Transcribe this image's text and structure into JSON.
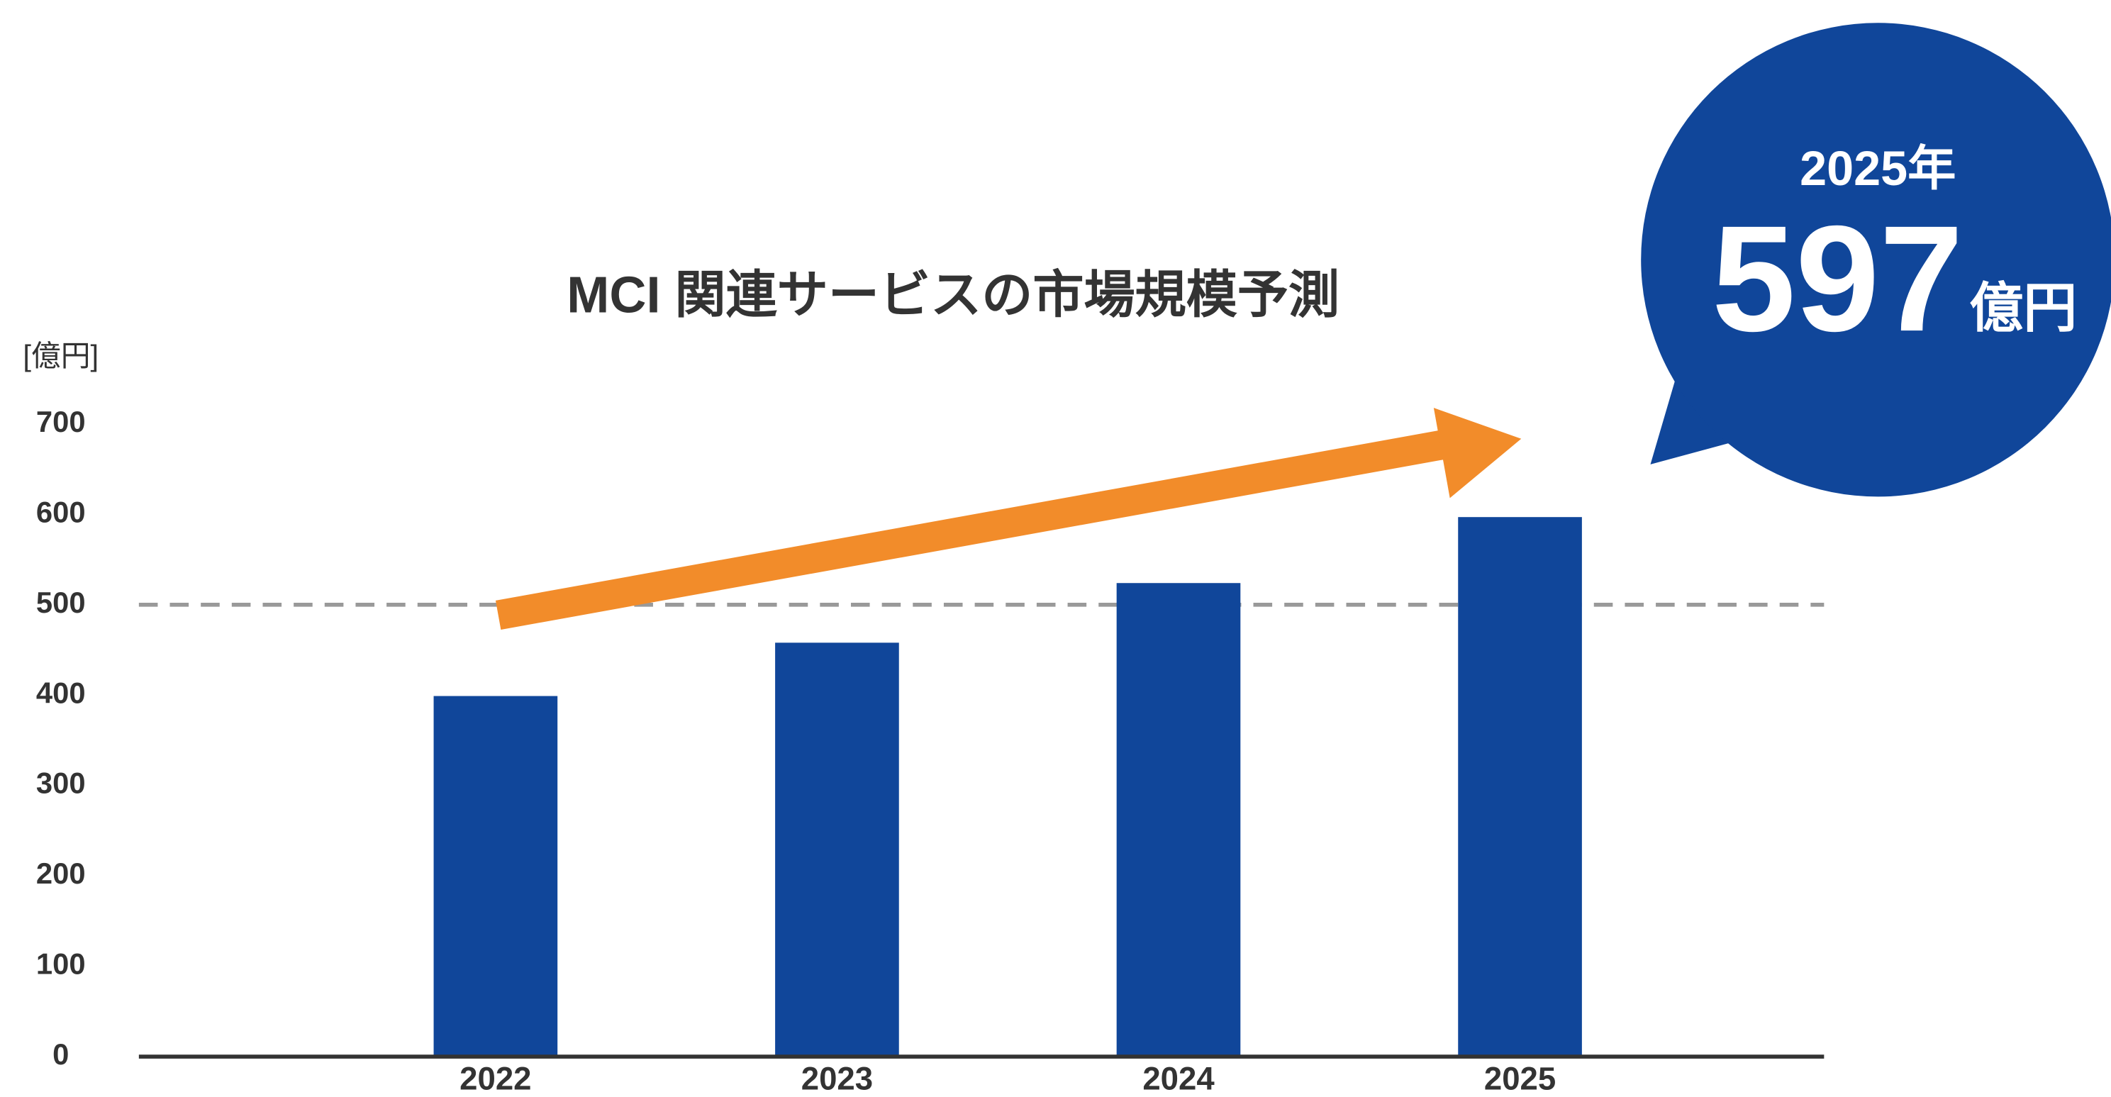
{
  "chart_data": {
    "type": "bar",
    "title": "MCI 関連サービスの市場規模予測",
    "y_axis_label": "[億円]",
    "categories": [
      "2022",
      "2023",
      "2024",
      "2025"
    ],
    "values": [
      399,
      458,
      524,
      597
    ],
    "color": "#10469a",
    "ylim": [
      0,
      700
    ],
    "yticks": [
      0,
      100,
      200,
      300,
      400,
      500,
      600,
      700
    ],
    "grid": false,
    "reference_line": 500,
    "callout": {
      "year_label": "2025年",
      "value": 597,
      "unit": "億円"
    }
  }
}
